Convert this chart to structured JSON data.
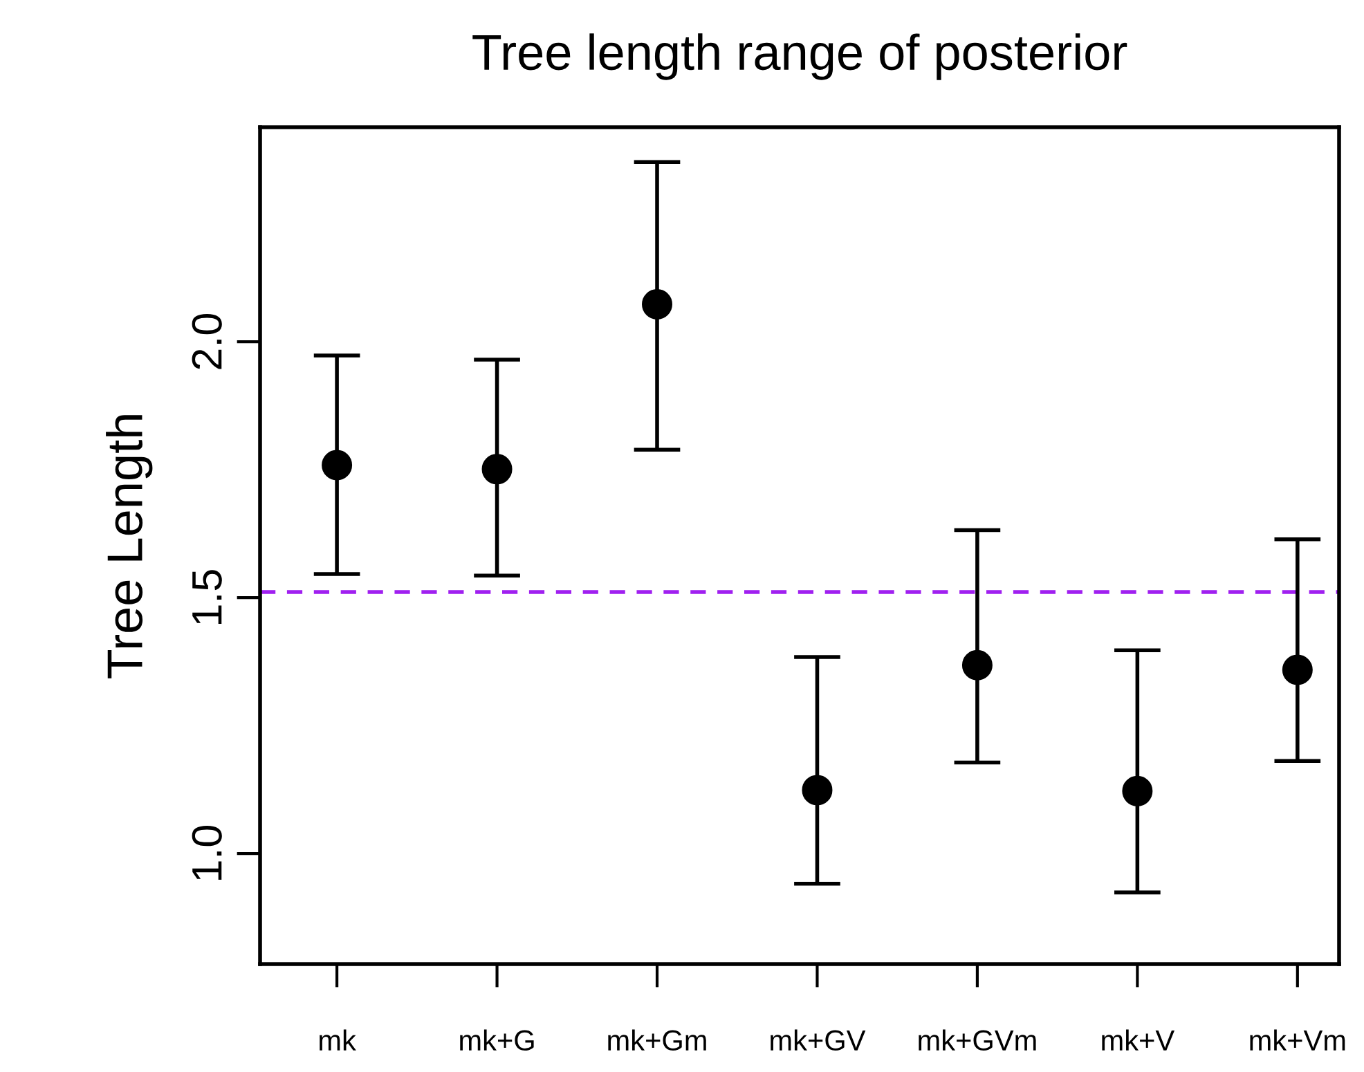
{
  "chart_data": {
    "type": "scatter",
    "title": "Tree length range of posterior",
    "ylabel": "Tree Length",
    "categories": [
      "mk",
      "mk+G",
      "mk+Gm",
      "mk+GV",
      "mk+GVm",
      "mk+V",
      "mk+Vm"
    ],
    "series": [
      {
        "color": "#000000",
        "values": [
          1.759,
          1.751,
          2.073,
          1.124,
          1.368,
          1.122,
          1.359
        ],
        "errors": [
          [
            1.546,
            1.973
          ],
          [
            1.543,
            1.965
          ],
          [
            1.789,
            2.351
          ],
          [
            0.941,
            1.384
          ],
          [
            1.178,
            1.632
          ],
          [
            0.924,
            1.397
          ],
          [
            1.181,
            1.614
          ]
        ]
      }
    ],
    "marker": "circle",
    "ylim": [
      0.784,
      2.419
    ],
    "yticks": [
      {
        "value": 1.0,
        "label": "1.0"
      },
      {
        "value": 1.5,
        "label": "1.5"
      },
      {
        "value": 2.0,
        "label": "2.0"
      }
    ],
    "ref_lines": [
      {
        "axis": "y",
        "value": 1.511,
        "color": "#a020f0",
        "line_style": "dashed"
      }
    ],
    "grid": false,
    "legend": false
  }
}
